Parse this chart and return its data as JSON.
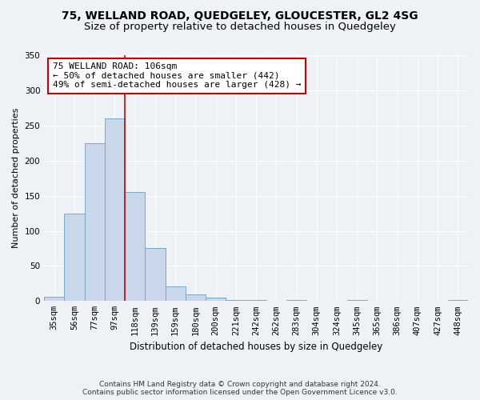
{
  "title": "75, WELLAND ROAD, QUEDGELEY, GLOUCESTER, GL2 4SG",
  "subtitle": "Size of property relative to detached houses in Quedgeley",
  "xlabel": "Distribution of detached houses by size in Quedgeley",
  "ylabel": "Number of detached properties",
  "categories": [
    "35sqm",
    "56sqm",
    "77sqm",
    "97sqm",
    "118sqm",
    "139sqm",
    "159sqm",
    "180sqm",
    "200sqm",
    "221sqm",
    "242sqm",
    "262sqm",
    "283sqm",
    "304sqm",
    "324sqm",
    "345sqm",
    "365sqm",
    "386sqm",
    "407sqm",
    "427sqm",
    "448sqm"
  ],
  "values": [
    6,
    125,
    225,
    260,
    155,
    75,
    21,
    10,
    5,
    2,
    1,
    0,
    2,
    0,
    0,
    1,
    0,
    0,
    0,
    0,
    2
  ],
  "bar_color": "#c8d8ea",
  "bar_edge_color": "#7aaac8",
  "red_line_x": 3.5,
  "annotation_line1": "75 WELLAND ROAD: 106sqm",
  "annotation_line2": "← 50% of detached houses are smaller (442)",
  "annotation_line3": "49% of semi-detached houses are larger (428) →",
  "annotation_box_color": "#ffffff",
  "annotation_box_edge": "#cc0000",
  "ylim": [
    0,
    350
  ],
  "yticks": [
    0,
    50,
    100,
    150,
    200,
    250,
    300,
    350
  ],
  "title_fontsize": 10,
  "subtitle_fontsize": 9.5,
  "xlabel_fontsize": 8.5,
  "ylabel_fontsize": 8,
  "tick_fontsize": 7.5,
  "annot_fontsize": 8,
  "footer_line1": "Contains HM Land Registry data © Crown copyright and database right 2024.",
  "footer_line2": "Contains public sector information licensed under the Open Government Licence v3.0.",
  "background_color": "#eef2f7",
  "plot_bg_color": "#eef2f7",
  "grid_color": "#ffffff"
}
